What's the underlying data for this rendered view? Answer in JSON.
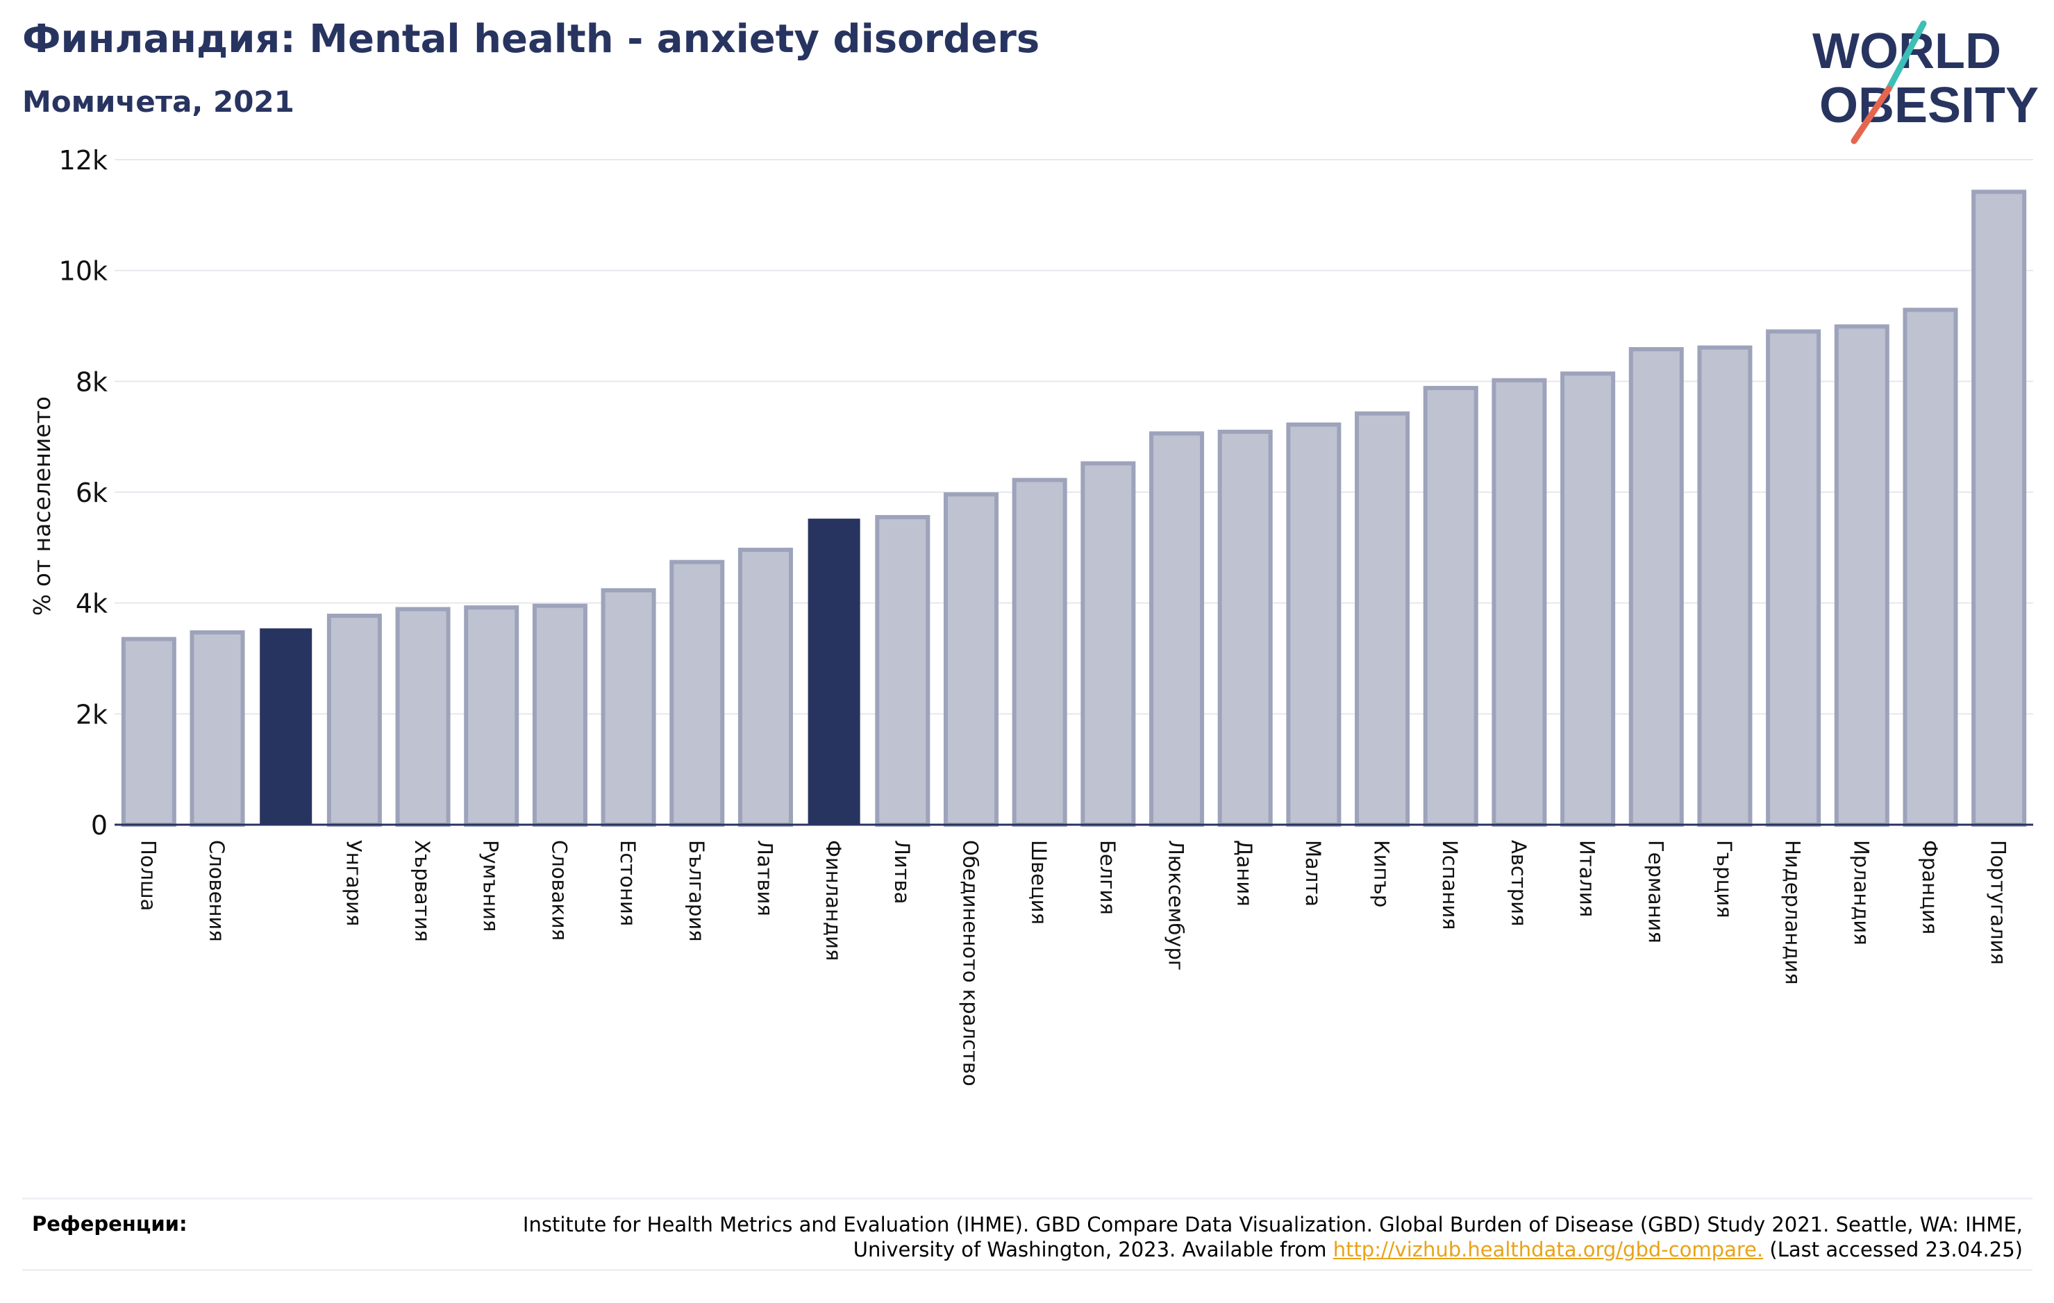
{
  "header": {
    "title": "Финландия: Mental health - anxiety disorders",
    "subtitle": "Момичета, 2021"
  },
  "logo": {
    "line1": "WORLD",
    "line2": "OBESITY",
    "colors": {
      "text": "#283460",
      "slash_top": "#3bbfb6",
      "slash_bottom": "#e5664f"
    }
  },
  "chart_data": {
    "type": "bar",
    "title": "Финландия: Mental health - anxiety disorders",
    "subtitle": "Момичета, 2021",
    "ylabel": "% от населението",
    "xlabel": "",
    "ylim": [
      0,
      12000
    ],
    "yticks": [
      0,
      2000,
      4000,
      6000,
      8000,
      10000,
      12000
    ],
    "ytick_labels": [
      "0",
      "2k",
      "4k",
      "6k",
      "8k",
      "10k",
      "12k"
    ],
    "grid": true,
    "categories": [
      "Полша",
      "Словения",
      "",
      "Унгария",
      "Хърватия",
      "Румъния",
      "Словакия",
      "Естония",
      "България",
      "Латвия",
      "Финландия",
      "Литва",
      "Обединеното кралство",
      "Швеция",
      "Белгия",
      "Люксембург",
      "Дания",
      "Малта",
      "Кипър",
      "Испания",
      "Австрия",
      "Италия",
      "Германия",
      "Гърция",
      "Нидерландия",
      "Ирландия",
      "Франция",
      "Португалия"
    ],
    "values": [
      3350,
      3470,
      3530,
      3770,
      3890,
      3920,
      3950,
      4230,
      4740,
      4960,
      5510,
      5550,
      5960,
      6220,
      6520,
      7060,
      7090,
      7220,
      7420,
      7880,
      8020,
      8140,
      8580,
      8610,
      8900,
      8990,
      9290,
      11420
    ],
    "highlighted": [
      2,
      10
    ],
    "colors": {
      "bar_fill": "#bfc2d0",
      "bar_stroke": "#9da3ba",
      "highlight": "#283460",
      "grid": "#e6e8ee",
      "axis": "#283460"
    }
  },
  "references": {
    "label": "Референции:",
    "text_before_link": "Institute for Health Metrics and Evaluation (IHME). GBD Compare Data Visualization. Global Burden of Disease (GBD) Study 2021. Seattle, WA: IHME, University of Washington, 2023. Available from",
    "link_text": "http://vizhub.healthdata.org/gbd-compare.",
    "text_after_link": "(Last accessed 23.04.25)"
  }
}
